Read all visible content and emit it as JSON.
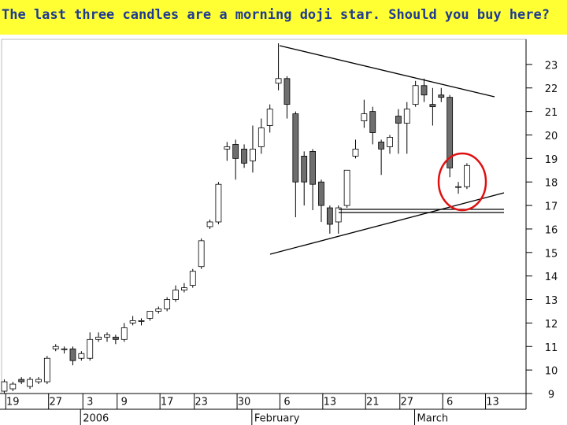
{
  "chart_data": {
    "type": "candlestick",
    "title": "The last three candles are a morning doji star. Should you buy here?",
    "categories": [
      null,
      "19",
      null,
      null,
      null,
      null,
      "27",
      null,
      null,
      null,
      "3",
      null,
      null,
      null,
      "9",
      null,
      null,
      null,
      null,
      "17",
      null,
      null,
      null,
      "23",
      null,
      null,
      null,
      null,
      "30",
      null,
      null,
      null,
      null,
      "6",
      null,
      null,
      null,
      null,
      "13",
      null,
      null,
      null,
      null,
      "21",
      null,
      null,
      null,
      "27",
      null,
      null,
      null,
      null,
      "6",
      null,
      null,
      null,
      null,
      "13"
    ],
    "period_labels": [
      null,
      null,
      null,
      null,
      null,
      null,
      null,
      null,
      null,
      null,
      "2006",
      null,
      null,
      null,
      null,
      null,
      null,
      null,
      null,
      null,
      null,
      null,
      null,
      null,
      null,
      null,
      null,
      null,
      null,
      null,
      "February",
      null,
      null,
      null,
      null,
      null,
      null,
      null,
      null,
      null,
      null,
      null,
      null,
      null,
      null,
      null,
      null,
      null,
      null,
      "March",
      null,
      null,
      null,
      null,
      null,
      null,
      null,
      null
    ],
    "open": [
      9.1,
      9.2,
      9.6,
      9.3,
      9.5,
      9.5,
      10.9,
      10.9,
      10.9,
      10.5,
      10.5,
      11.3,
      11.4,
      11.4,
      11.3,
      12.0,
      12.1,
      12.2,
      12.5,
      12.6,
      13.0,
      13.4,
      13.6,
      14.4,
      16.1,
      16.3,
      19.4,
      19.6,
      19.4,
      18.9,
      19.5,
      20.4,
      22.2,
      22.4,
      20.9,
      19.1,
      19.3,
      18.0,
      16.9,
      16.3,
      17.0,
      19.1,
      20.6,
      21.0,
      19.7,
      19.5,
      20.8,
      20.5,
      21.3,
      22.1,
      21.3,
      21.7,
      21.6,
      17.8,
      17.8,
      null,
      null,
      null
    ],
    "high": [
      9.6,
      9.5,
      9.7,
      9.7,
      9.7,
      10.6,
      11.1,
      11.0,
      11.0,
      10.8,
      11.6,
      11.6,
      11.6,
      11.5,
      12.0,
      12.3,
      12.2,
      12.5,
      12.7,
      13.1,
      13.6,
      13.7,
      14.3,
      15.6,
      16.4,
      18.0,
      19.7,
      19.8,
      19.6,
      20.4,
      20.7,
      21.3,
      23.9,
      22.5,
      21.0,
      19.3,
      19.4,
      18.1,
      17.0,
      17.0,
      18.5,
      19.8,
      21.5,
      21.2,
      19.8,
      20.0,
      21.1,
      21.4,
      22.3,
      22.4,
      22.0,
      22.0,
      21.7,
      18.0,
      18.8,
      null,
      null,
      null
    ],
    "low": [
      9.0,
      9.1,
      9.4,
      9.2,
      9.4,
      9.4,
      10.8,
      10.7,
      10.2,
      10.4,
      10.4,
      11.2,
      11.2,
      11.1,
      11.2,
      11.9,
      11.9,
      12.1,
      12.4,
      12.5,
      12.9,
      13.3,
      13.5,
      14.3,
      16.0,
      16.2,
      18.9,
      18.1,
      18.6,
      18.4,
      19.2,
      20.1,
      21.9,
      20.7,
      16.5,
      17.0,
      16.8,
      16.3,
      15.8,
      15.8,
      16.9,
      19.0,
      20.3,
      19.6,
      18.3,
      19.2,
      19.2,
      19.2,
      21.2,
      21.4,
      20.4,
      21.4,
      18.2,
      17.5,
      17.7,
      null,
      null,
      null
    ],
    "close": [
      9.5,
      9.4,
      9.5,
      9.6,
      9.6,
      10.5,
      11.0,
      10.9,
      10.4,
      10.7,
      11.3,
      11.4,
      11.5,
      11.3,
      11.8,
      12.1,
      12.1,
      12.5,
      12.6,
      13.0,
      13.4,
      13.5,
      14.2,
      15.5,
      16.3,
      17.9,
      19.5,
      19.0,
      18.8,
      19.4,
      20.3,
      21.1,
      22.4,
      21.3,
      18.0,
      18.0,
      17.9,
      17.0,
      16.2,
      16.9,
      18.5,
      19.4,
      20.9,
      20.1,
      19.4,
      19.9,
      20.5,
      21.1,
      22.1,
      21.7,
      21.2,
      21.6,
      18.6,
      17.8,
      18.7,
      null,
      null,
      null
    ],
    "up_color": "#ffffff",
    "down_color": "#6e6e6e",
    "ylim": [
      9,
      23.9
    ],
    "yticks": [
      9,
      10,
      11,
      12,
      13,
      14,
      15,
      16,
      17,
      18,
      19,
      20,
      21,
      22,
      23
    ]
  }
}
